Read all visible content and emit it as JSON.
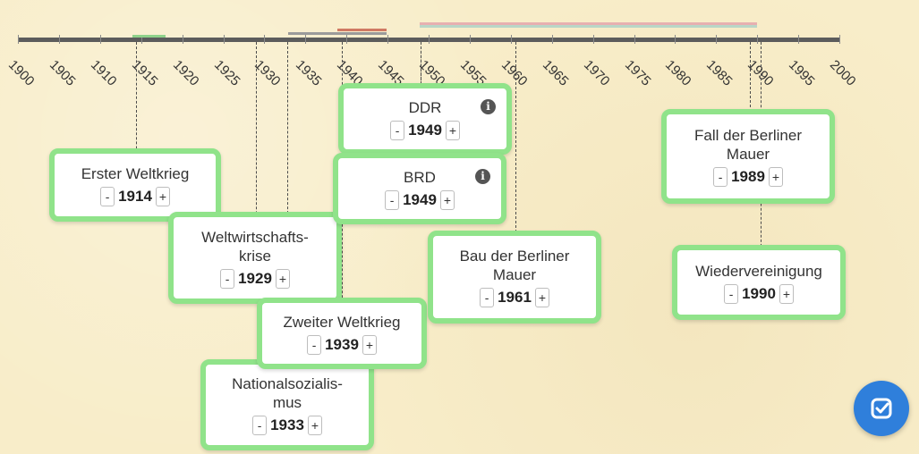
{
  "timeline": {
    "ticks": [
      "1900",
      "1905",
      "1910",
      "1915",
      "1920",
      "1925",
      "1930",
      "1935",
      "1940",
      "1945",
      "1950",
      "1955",
      "1960",
      "1965",
      "1970",
      "1975",
      "1980",
      "1985",
      "1990",
      "1995",
      "2000"
    ]
  },
  "events": [
    {
      "id": "erster-weltkrieg",
      "title": "Erster Weltkrieg",
      "year": "1914",
      "info": false
    },
    {
      "id": "weltwirtschaftskrise",
      "title": "Weltwirtschafts-\nkrise",
      "year": "1929",
      "info": false
    },
    {
      "id": "nationalsozialismus",
      "title": "Nationalsozialis-\nmus",
      "year": "1933",
      "info": false
    },
    {
      "id": "zweiter-weltkrieg",
      "title": "Zweiter Weltkrieg",
      "year": "1939",
      "info": false
    },
    {
      "id": "ddr",
      "title": "DDR",
      "year": "1949",
      "info": true
    },
    {
      "id": "brd",
      "title": "BRD",
      "year": "1949",
      "info": true
    },
    {
      "id": "bau-der-berliner-mauer",
      "title": "Bau der Berliner\nMauer",
      "year": "1961",
      "info": false
    },
    {
      "id": "fall-der-berliner-mauer",
      "title": "Fall der Berliner\nMauer",
      "year": "1989",
      "info": false
    },
    {
      "id": "wiedervereinigung",
      "title": "Wiedervereinigung",
      "year": "1990",
      "info": false
    }
  ],
  "buttons": {
    "minus": "-",
    "plus": "+"
  },
  "icons": {
    "info": "info-icon",
    "check": "check-icon"
  },
  "colors": {
    "card_border": "#90e38a",
    "axis": "#5c5c5c",
    "check_button": "#2f7fdb",
    "range_ww1": "#8fd28a",
    "range_ns": "#9b9b9b",
    "range_ww2": "#d07a63",
    "range_ddr": "#e7b0b0"
  }
}
